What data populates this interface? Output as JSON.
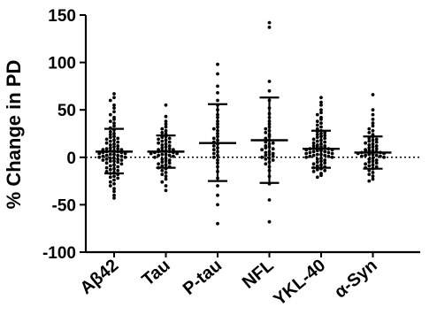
{
  "chart_data": {
    "type": "scatter",
    "title": "",
    "xlabel": "",
    "ylabel": "% Change in PD",
    "ylim": [
      -100,
      150
    ],
    "yticks": [
      -100,
      -50,
      0,
      50,
      100,
      150
    ],
    "reference_line": {
      "y": 0,
      "style": "dotted"
    },
    "grid": false,
    "legend": "none",
    "categories": [
      "Aβ42",
      "Tau",
      "P-tau",
      "NFL",
      "YKL-40",
      "α-Syn"
    ],
    "groups": [
      {
        "name": "Aβ42",
        "mean": 6,
        "sd_low": -17,
        "sd_high": 30,
        "points": [
          67,
          63,
          60,
          55,
          52,
          48,
          45,
          42,
          40,
          38,
          36,
          33,
          31,
          29,
          27,
          25,
          24,
          22,
          21,
          20,
          19,
          18,
          17,
          16,
          15,
          14,
          13,
          12,
          11,
          10,
          9,
          9,
          8,
          8,
          7,
          7,
          6,
          6,
          5,
          5,
          4,
          4,
          3,
          3,
          2,
          2,
          1,
          1,
          0,
          0,
          -1,
          -1,
          -2,
          -2,
          -3,
          -3,
          -4,
          -4,
          -5,
          -6,
          -7,
          -8,
          -9,
          -10,
          -11,
          -12,
          -13,
          -14,
          -15,
          -16,
          -17,
          -18,
          -20,
          -21,
          -22,
          -24,
          -26,
          -28,
          -30,
          -33,
          -36,
          -40,
          -43
        ]
      },
      {
        "name": "Tau",
        "mean": 6,
        "sd_low": -11,
        "sd_high": 23,
        "points": [
          55,
          43,
          38,
          35,
          32,
          30,
          28,
          26,
          25,
          23,
          22,
          21,
          20,
          19,
          18,
          17,
          16,
          15,
          14,
          13,
          12,
          11,
          10,
          9,
          8,
          8,
          7,
          7,
          6,
          6,
          5,
          5,
          4,
          4,
          3,
          3,
          2,
          2,
          1,
          0,
          -1,
          -2,
          -3,
          -4,
          -5,
          -6,
          -7,
          -8,
          -9,
          -10,
          -11,
          -12,
          -14,
          -16,
          -18,
          -20,
          -23,
          -26,
          -30,
          -35
        ]
      },
      {
        "name": "P-tau",
        "mean": 15,
        "sd_low": -25,
        "sd_high": 56,
        "points": [
          98,
          88,
          75,
          68,
          60,
          55,
          50,
          45,
          42,
          38,
          35,
          32,
          30,
          28,
          25,
          22,
          20,
          18,
          16,
          14,
          12,
          10,
          8,
          6,
          4,
          2,
          0,
          -3,
          -6,
          -10,
          -15,
          -22,
          -30,
          -40,
          -50,
          -70
        ]
      },
      {
        "name": "NFL",
        "mean": 18,
        "sd_low": -27,
        "sd_high": 63,
        "points": [
          142,
          137,
          80,
          70,
          60,
          52,
          46,
          42,
          38,
          35,
          32,
          30,
          28,
          26,
          24,
          22,
          20,
          18,
          16,
          15,
          14,
          12,
          11,
          10,
          9,
          8,
          6,
          5,
          4,
          3,
          2,
          1,
          0,
          -1,
          -2,
          -3,
          -5,
          -7,
          -10,
          -14,
          -20,
          -28,
          -45,
          -68
        ]
      },
      {
        "name": "YKL-40",
        "mean": 9,
        "sd_low": -11,
        "sd_high": 28,
        "points": [
          63,
          58,
          55,
          50,
          47,
          45,
          42,
          40,
          38,
          36,
          34,
          32,
          30,
          28,
          27,
          26,
          25,
          24,
          23,
          22,
          21,
          20,
          19,
          18,
          17,
          16,
          15,
          14,
          13,
          12,
          12,
          11,
          11,
          10,
          10,
          9,
          9,
          8,
          8,
          7,
          7,
          6,
          6,
          5,
          5,
          4,
          4,
          3,
          3,
          2,
          2,
          1,
          1,
          0,
          0,
          -1,
          -2,
          -3,
          -4,
          -5,
          -6,
          -7,
          -8,
          -9,
          -10,
          -11,
          -12,
          -13,
          -14,
          -15,
          -17,
          -19,
          -21
        ]
      },
      {
        "name": "α-Syn",
        "mean": 5,
        "sd_low": -12,
        "sd_high": 22,
        "points": [
          66,
          50,
          45,
          40,
          36,
          33,
          30,
          28,
          26,
          24,
          22,
          20,
          19,
          18,
          17,
          16,
          15,
          14,
          13,
          12,
          11,
          10,
          9,
          8,
          7,
          7,
          6,
          6,
          5,
          5,
          4,
          4,
          3,
          3,
          2,
          2,
          1,
          1,
          0,
          -1,
          -2,
          -3,
          -4,
          -5,
          -6,
          -7,
          -8,
          -9,
          -10,
          -11,
          -12,
          -14,
          -16,
          -18,
          -20,
          -23,
          -25
        ]
      }
    ]
  }
}
